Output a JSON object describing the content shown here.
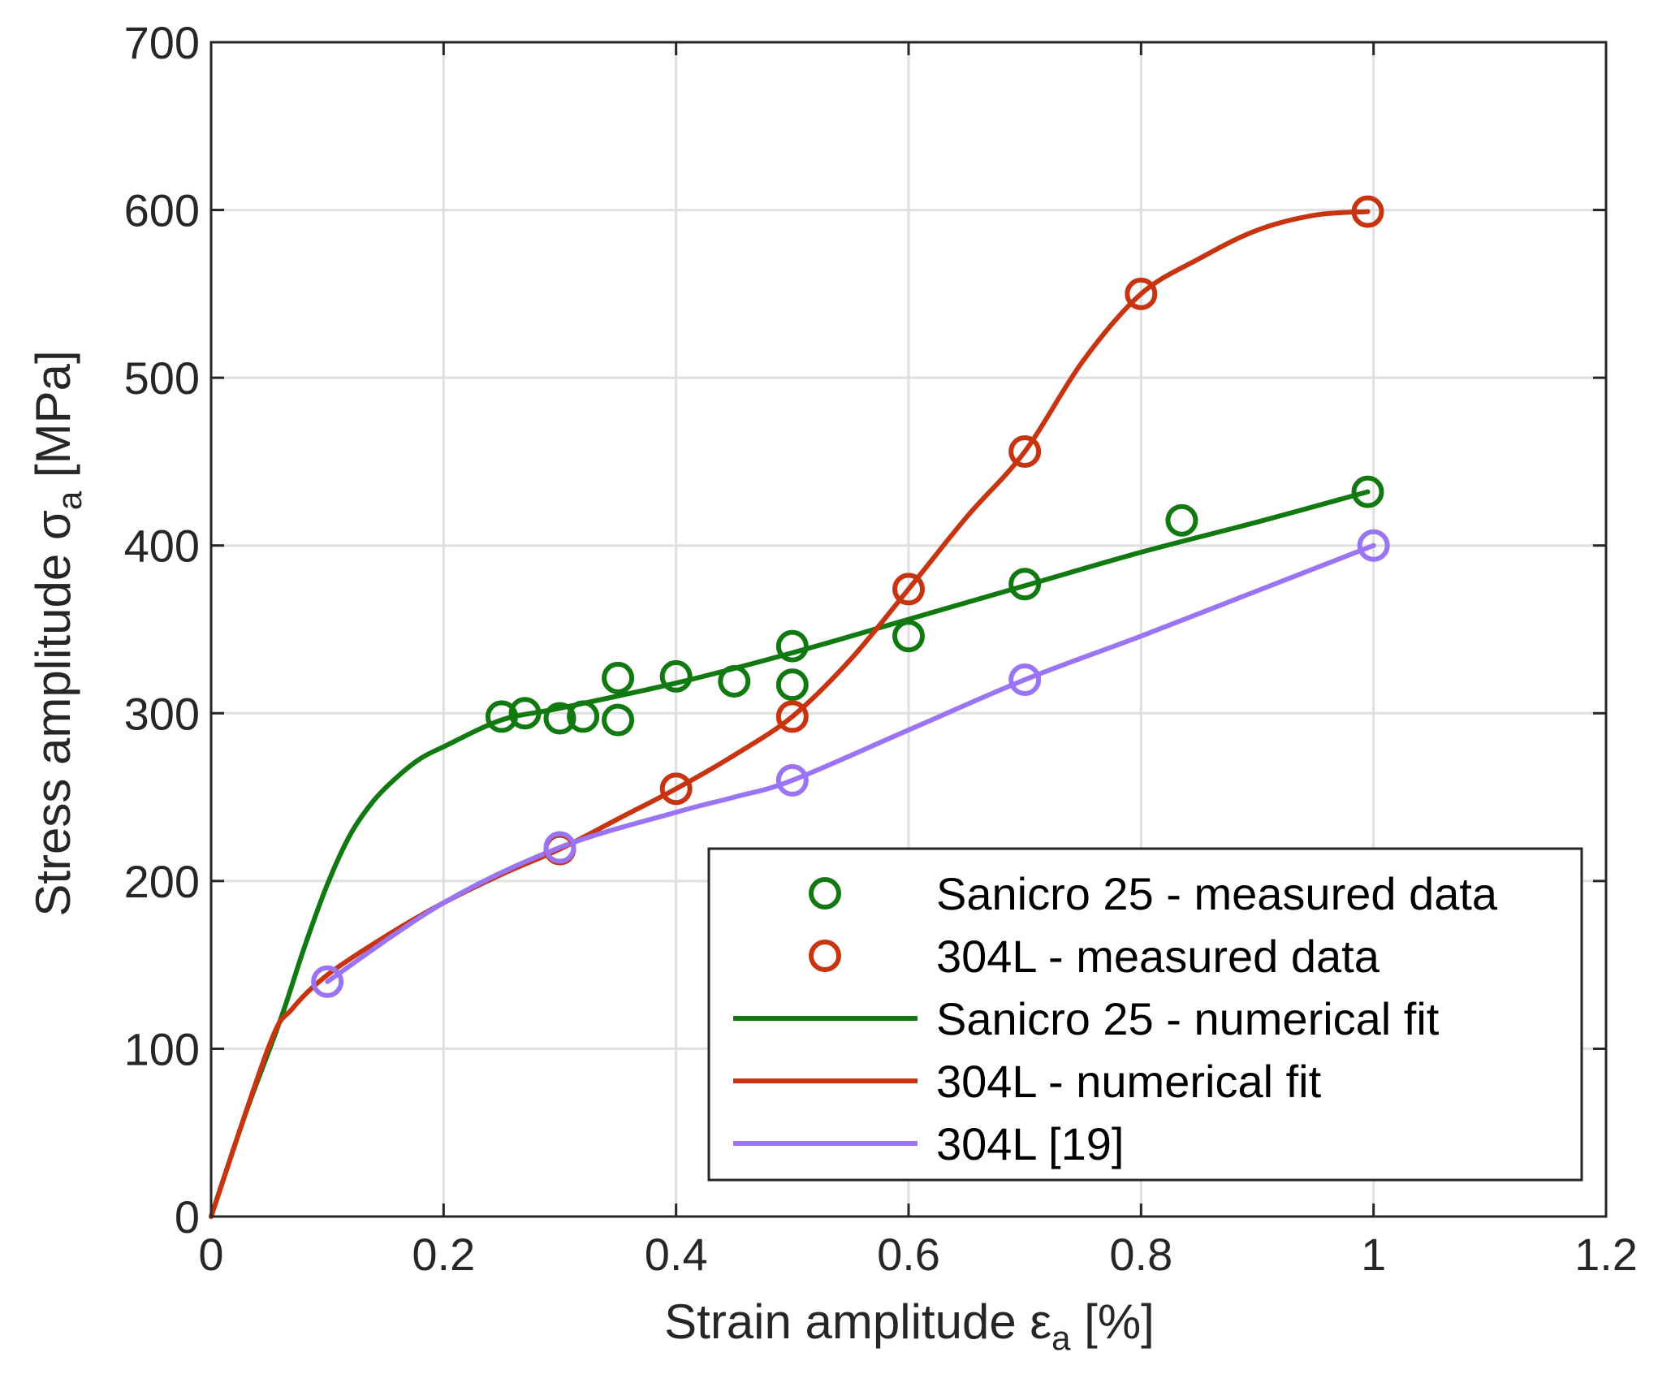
{
  "chart_data": {
    "type": "line",
    "title": "",
    "xlabel": {
      "main": "Strain amplitude ε",
      "sub": "a",
      "unit": " [%]"
    },
    "ylabel": {
      "main": "Stress amplitude σ",
      "sub": "a",
      "unit": "  [MPa]"
    },
    "xlim": [
      0,
      1.2
    ],
    "ylim": [
      0,
      700
    ],
    "xticks": [
      0,
      0.2,
      0.4,
      0.6,
      0.8,
      1,
      1.2
    ],
    "xtick_labels": [
      "0",
      "0.2",
      "0.4",
      "0.6",
      "0.8",
      "1",
      "1.2"
    ],
    "yticks": [
      0,
      100,
      200,
      300,
      400,
      500,
      600,
      700
    ],
    "ytick_labels": [
      "0",
      "100",
      "200",
      "300",
      "400",
      "500",
      "600",
      "700"
    ],
    "grid": true,
    "legend_position": "bottom-right",
    "series": [
      {
        "name": "Sanicro 25 - measured data",
        "kind": "markers",
        "color": "#107a10",
        "x": [
          0.25,
          0.27,
          0.3,
          0.32,
          0.35,
          0.35,
          0.4,
          0.45,
          0.5,
          0.5,
          0.6,
          0.7,
          0.835,
          0.995
        ],
        "y": [
          298,
          300,
          297,
          298,
          296,
          321,
          322,
          319,
          340,
          317,
          346,
          377,
          415,
          432
        ]
      },
      {
        "name": "304L - measured data",
        "kind": "markers",
        "color": "#c83410",
        "x": [
          0.3,
          0.4,
          0.5,
          0.6,
          0.7,
          0.8,
          0.995
        ],
        "y": [
          219,
          255,
          298,
          374,
          456,
          550,
          599
        ]
      },
      {
        "name": "Sanicro 25 - numerical fit",
        "kind": "line",
        "color": "#107a10",
        "x": [
          0,
          0.03,
          0.06,
          0.08,
          0.1,
          0.12,
          0.14,
          0.16,
          0.18,
          0.2,
          0.25,
          0.3,
          0.4,
          0.5,
          0.6,
          0.7,
          0.8,
          0.9,
          0.995
        ],
        "y": [
          0,
          62,
          118,
          160,
          198,
          228,
          248,
          262,
          273,
          280,
          296,
          303,
          318,
          336,
          356,
          376,
          396,
          414,
          432
        ]
      },
      {
        "name": "304L - numerical fit",
        "kind": "line",
        "color": "#c83410",
        "x": [
          0,
          0.05,
          0.07,
          0.1,
          0.15,
          0.2,
          0.25,
          0.3,
          0.35,
          0.4,
          0.45,
          0.5,
          0.55,
          0.6,
          0.65,
          0.7,
          0.75,
          0.8,
          0.85,
          0.9,
          0.95,
          0.995
        ],
        "y": [
          0,
          102,
          124,
          144,
          167,
          187,
          204,
          219,
          237,
          255,
          275,
          298,
          332,
          374,
          417,
          456,
          510,
          550,
          571,
          588,
          597,
          599
        ]
      },
      {
        "name": "304L [19]",
        "kind": "line+markers",
        "color": "#9b73f5",
        "x": [
          0.1,
          0.2,
          0.3,
          0.4,
          0.45,
          0.5,
          0.6,
          0.7,
          0.8,
          0.9,
          1.0
        ],
        "y": [
          140,
          187,
          220,
          241,
          250,
          260,
          290,
          320,
          346,
          373,
          400
        ],
        "marker_x": [
          0.1,
          0.3,
          0.5,
          0.7,
          1.0
        ],
        "marker_y": [
          140,
          220,
          260,
          320,
          400
        ]
      }
    ],
    "legend": [
      {
        "label": "Sanicro 25 - measured data",
        "kind": "marker",
        "color": "#107a10"
      },
      {
        "label": "304L - measured data",
        "kind": "marker",
        "color": "#c83410"
      },
      {
        "label": "Sanicro 25 - numerical fit",
        "kind": "line",
        "color": "#107a10"
      },
      {
        "label": "304L - numerical fit",
        "kind": "line",
        "color": "#c83410"
      },
      {
        "label": "304L [19]",
        "kind": "line",
        "color": "#9b73f5"
      }
    ]
  }
}
